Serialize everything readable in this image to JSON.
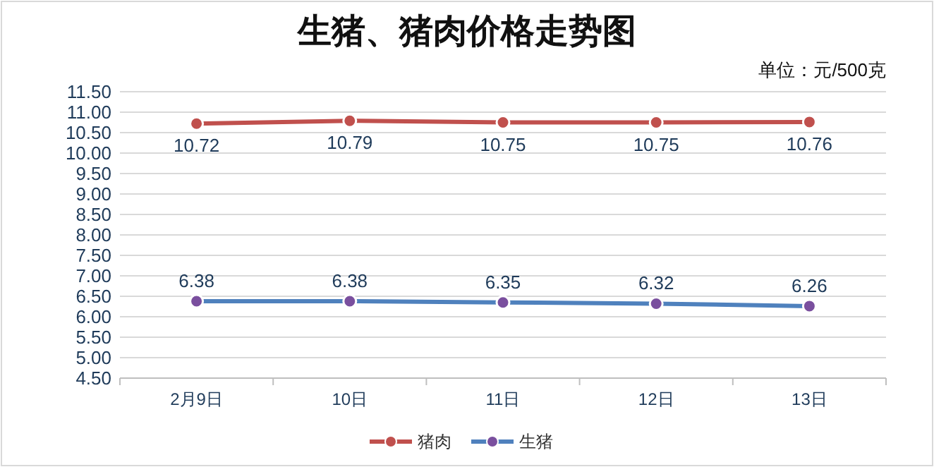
{
  "chart_data": {
    "type": "line",
    "title": "生猪、猪肉价格走势图",
    "annotations": [
      "单位：元/500克"
    ],
    "categories": [
      "2月9日",
      "10日",
      "11日",
      "12日",
      "13日"
    ],
    "series": [
      {
        "name": "猪肉",
        "color": "#c0504d",
        "values": [
          10.72,
          10.79,
          10.75,
          10.75,
          10.76
        ]
      },
      {
        "name": "生猪",
        "color": "#4f81bd",
        "values": [
          6.38,
          6.38,
          6.35,
          6.32,
          6.26
        ]
      }
    ],
    "ylim": [
      4.5,
      11.5
    ],
    "yticks": [
      {
        "value": 4.5,
        "label": "4.50"
      },
      {
        "value": 5,
        "label": "5.00"
      },
      {
        "value": 5.5,
        "label": "5.50"
      },
      {
        "value": 6,
        "label": "6.00"
      },
      {
        "value": 6.5,
        "label": "6.50"
      },
      {
        "value": 7,
        "label": "7.00"
      },
      {
        "value": 7.5,
        "label": "7.50"
      },
      {
        "value": 8,
        "label": "8.00"
      },
      {
        "value": 8.5,
        "label": "8.50"
      },
      {
        "value": 9,
        "label": "9.00"
      },
      {
        "value": 9.5,
        "label": "9.50"
      },
      {
        "value": 10,
        "label": "10.00"
      },
      {
        "value": 10.5,
        "label": "10.50"
      },
      {
        "value": 11,
        "label": "11.00"
      },
      {
        "value": 11.5,
        "label": "11.50"
      }
    ],
    "grid": "y",
    "legend": "bottom",
    "marker": "circle",
    "line_style": "solid",
    "data_labels": true
  }
}
